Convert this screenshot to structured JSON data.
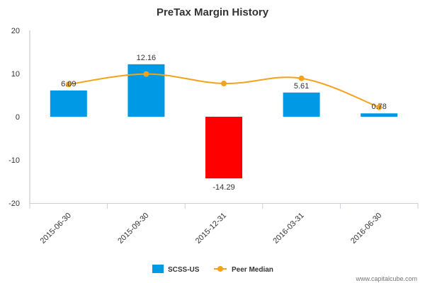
{
  "chart_data": {
    "type": "bar",
    "title": "PreTax Margin History",
    "categories": [
      "2015-06-30",
      "2015-09-30",
      "2015-12-31",
      "2016-03-31",
      "2016-06-30"
    ],
    "series": [
      {
        "name": "SCSS-US",
        "type": "bar",
        "values": [
          6.09,
          12.16,
          -14.29,
          5.61,
          0.78
        ],
        "color": "#0099e6",
        "negative_color": "#ff0000",
        "data_labels": [
          "6.09",
          "12.16",
          "-14.29",
          "5.61",
          "0.78"
        ]
      },
      {
        "name": "Peer Median",
        "type": "line",
        "smooth": true,
        "values": [
          7.5,
          9.9,
          7.7,
          8.9,
          2.2
        ],
        "color": "#f4a21b"
      }
    ],
    "ylim": [
      -20,
      20
    ],
    "yticks": [
      "20",
      "10",
      "0",
      "-10",
      "-20"
    ],
    "ytick_values": [
      20,
      10,
      0,
      -10,
      -20
    ],
    "grid": false,
    "legend_position": "bottom"
  },
  "credit": "www.capitalcube.com"
}
